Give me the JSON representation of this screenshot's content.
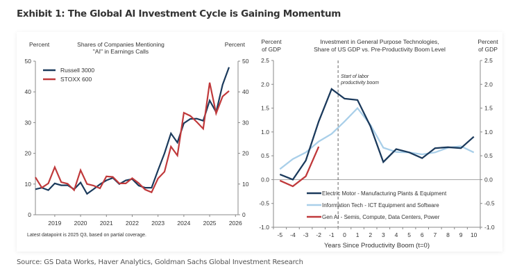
{
  "title": "Exhibit 1: The Global AI Investment Cycle is Gaining Momentum",
  "source": "Source: GS Data Works, Haver Analytics, Goldman Sachs Global Investment Research",
  "colors": {
    "dark_blue": "#1b3a5c",
    "light_blue": "#a9cfe9",
    "red": "#c0393b",
    "axis": "#888888",
    "text": "#333333"
  },
  "chart_data": [
    {
      "type": "line",
      "title_lines": [
        "Shares of Companies Mentioning",
        "\"AI\" in Earnings Calls"
      ],
      "ylabel_left": "Percent",
      "ylabel_right": "Percent",
      "xlabel": "",
      "ylim": [
        0,
        50
      ],
      "xlim": [
        2018.25,
        2026.1
      ],
      "yticks": [
        0,
        10,
        20,
        30,
        40,
        50
      ],
      "xticks": [
        2019,
        2020,
        2021,
        2022,
        2023,
        2024,
        2025,
        2026
      ],
      "grid": false,
      "legend": "top-left",
      "note": "Latest datapoint is 2025 Q3, based on partial coverage.",
      "x": [
        2018.25,
        2018.5,
        2018.75,
        2019,
        2019.25,
        2019.5,
        2019.75,
        2020,
        2020.25,
        2020.5,
        2020.75,
        2021,
        2021.25,
        2021.5,
        2021.75,
        2022,
        2022.25,
        2022.5,
        2022.75,
        2023,
        2023.25,
        2023.5,
        2023.75,
        2024,
        2024.25,
        2024.5,
        2024.75,
        2025,
        2025.25,
        2025.5,
        2025.75
      ],
      "series": [
        {
          "name": "Russell 3000",
          "color": "#1b3a5c",
          "values": [
            8.3,
            8.8,
            8.0,
            10.2,
            9.6,
            9.6,
            8.3,
            10.5,
            6.8,
            8.3,
            9.9,
            11.2,
            12.0,
            10.0,
            11.2,
            11.6,
            9.5,
            8.8,
            8.8,
            14.5,
            20.0,
            26.5,
            23.5,
            29.8,
            31.2,
            31.3,
            30.6,
            37.2,
            33.4,
            42.3,
            48.0
          ]
        },
        {
          "name": "STOXX 600",
          "color": "#c0393b",
          "values": [
            12.2,
            8.8,
            10.2,
            15.5,
            10.6,
            10.1,
            8.0,
            14.5,
            10.0,
            9.5,
            8.6,
            12.5,
            12.3,
            10.2,
            10.2,
            11.9,
            10.3,
            8.2,
            7.3,
            11.8,
            14.0,
            22.2,
            19.3,
            33.2,
            32.2,
            30.2,
            28.0,
            43.0,
            33.0,
            38.5,
            40.3
          ]
        }
      ]
    },
    {
      "type": "line",
      "title_lines": [
        "Investment  in General Purpose Technologies,",
        "Share of US GDP vs. Pre-Productivity Boom Level"
      ],
      "ylabel_left": [
        "Percent",
        "of GDP"
      ],
      "ylabel_right": [
        "Percent",
        "of GDP"
      ],
      "xlabel": "Years  Since Productivity Boom (t=0)",
      "ylim": [
        -1.0,
        2.5
      ],
      "xlim": [
        -5.5,
        10.5
      ],
      "yticks": [
        -1.0,
        -0.5,
        0.0,
        0.5,
        1.0,
        1.5,
        2.0,
        2.5
      ],
      "xticks": [
        -5,
        -4,
        -3,
        -2,
        -1,
        0,
        1,
        2,
        3,
        4,
        5,
        6,
        7,
        8,
        9,
        10
      ],
      "grid": false,
      "legend": "bottom-center",
      "annotation": {
        "text_lines": [
          "Start of labor",
          "productivity boom"
        ],
        "x": -0.5
      },
      "x": [
        -5,
        -4,
        -3,
        -2,
        -1,
        0,
        1,
        2,
        3,
        4,
        5,
        6,
        7,
        8,
        9,
        10
      ],
      "series": [
        {
          "name": "Electric Motor -  Manufacturing Plants & Equipment",
          "color": "#1b3a5c",
          "values": [
            0.11,
            0.0,
            0.4,
            1.22,
            1.9,
            1.7,
            1.67,
            1.12,
            0.37,
            0.64,
            0.57,
            0.45,
            0.66,
            0.68,
            0.66,
            0.9
          ]
        },
        {
          "name": "Information Tech - ICT Equipment and Software",
          "color": "#a9cfe9",
          "values": [
            0.22,
            0.43,
            0.57,
            0.8,
            0.96,
            1.22,
            1.5,
            1.15,
            0.67,
            0.58,
            0.57,
            0.53,
            0.57,
            0.67,
            0.7,
            0.57
          ]
        },
        {
          "name": "Gen AI - Semis, Compute, Data Centers, Power",
          "color": "#c0393b",
          "values": [
            -0.02,
            -0.14,
            0.07,
            0.69
          ]
        }
      ]
    }
  ]
}
